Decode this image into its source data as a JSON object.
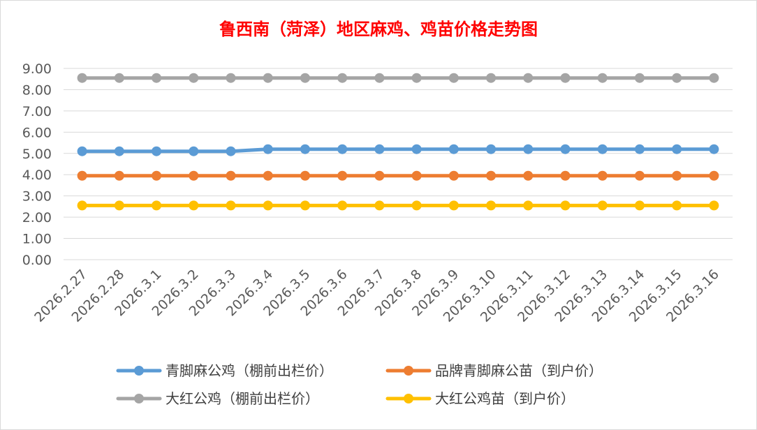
{
  "chart_data": {
    "type": "line",
    "title": "鲁西南（菏泽）地区麻鸡、鸡苗价格走势图",
    "xlabel": "",
    "ylabel": "",
    "ylim": [
      0,
      9
    ],
    "yticks": [
      "0.00",
      "1.00",
      "2.00",
      "3.00",
      "4.00",
      "5.00",
      "6.00",
      "7.00",
      "8.00",
      "9.00"
    ],
    "categories": [
      "2026.2.27",
      "2026.2.28",
      "2026.3.1",
      "2026.3.2",
      "2026.3.3",
      "2026.3.4",
      "2026.3.5",
      "2026.3.6",
      "2026.3.7",
      "2026.3.8",
      "2026.3.9",
      "2026.3.10",
      "2026.3.11",
      "2026.3.12",
      "2026.3.13",
      "2026.3.14",
      "2026.3.15",
      "2026.3.16"
    ],
    "grid": true,
    "legend_position": "bottom",
    "series": [
      {
        "name": "青脚麻公鸡（棚前出栏价）",
        "color": "#5b9bd5",
        "values": [
          5.1,
          5.1,
          5.1,
          5.1,
          5.1,
          5.2,
          5.2,
          5.2,
          5.2,
          5.2,
          5.2,
          5.2,
          5.2,
          5.2,
          5.2,
          5.2,
          5.2,
          5.2
        ]
      },
      {
        "name": "品牌青脚麻公苗（到户价）",
        "color": "#ed7d31",
        "values": [
          3.95,
          3.95,
          3.95,
          3.95,
          3.95,
          3.95,
          3.95,
          3.95,
          3.95,
          3.95,
          3.95,
          3.95,
          3.95,
          3.95,
          3.95,
          3.95,
          3.95,
          3.95
        ]
      },
      {
        "name": "大红公鸡（棚前出栏价）",
        "color": "#a5a5a5",
        "values": [
          8.55,
          8.55,
          8.55,
          8.55,
          8.55,
          8.55,
          8.55,
          8.55,
          8.55,
          8.55,
          8.55,
          8.55,
          8.55,
          8.55,
          8.55,
          8.55,
          8.55,
          8.55
        ]
      },
      {
        "name": "大红公鸡苗（到户价）",
        "color": "#ffc000",
        "values": [
          2.55,
          2.55,
          2.55,
          2.55,
          2.55,
          2.55,
          2.55,
          2.55,
          2.55,
          2.55,
          2.55,
          2.55,
          2.55,
          2.55,
          2.55,
          2.55,
          2.55,
          2.55
        ]
      }
    ]
  }
}
